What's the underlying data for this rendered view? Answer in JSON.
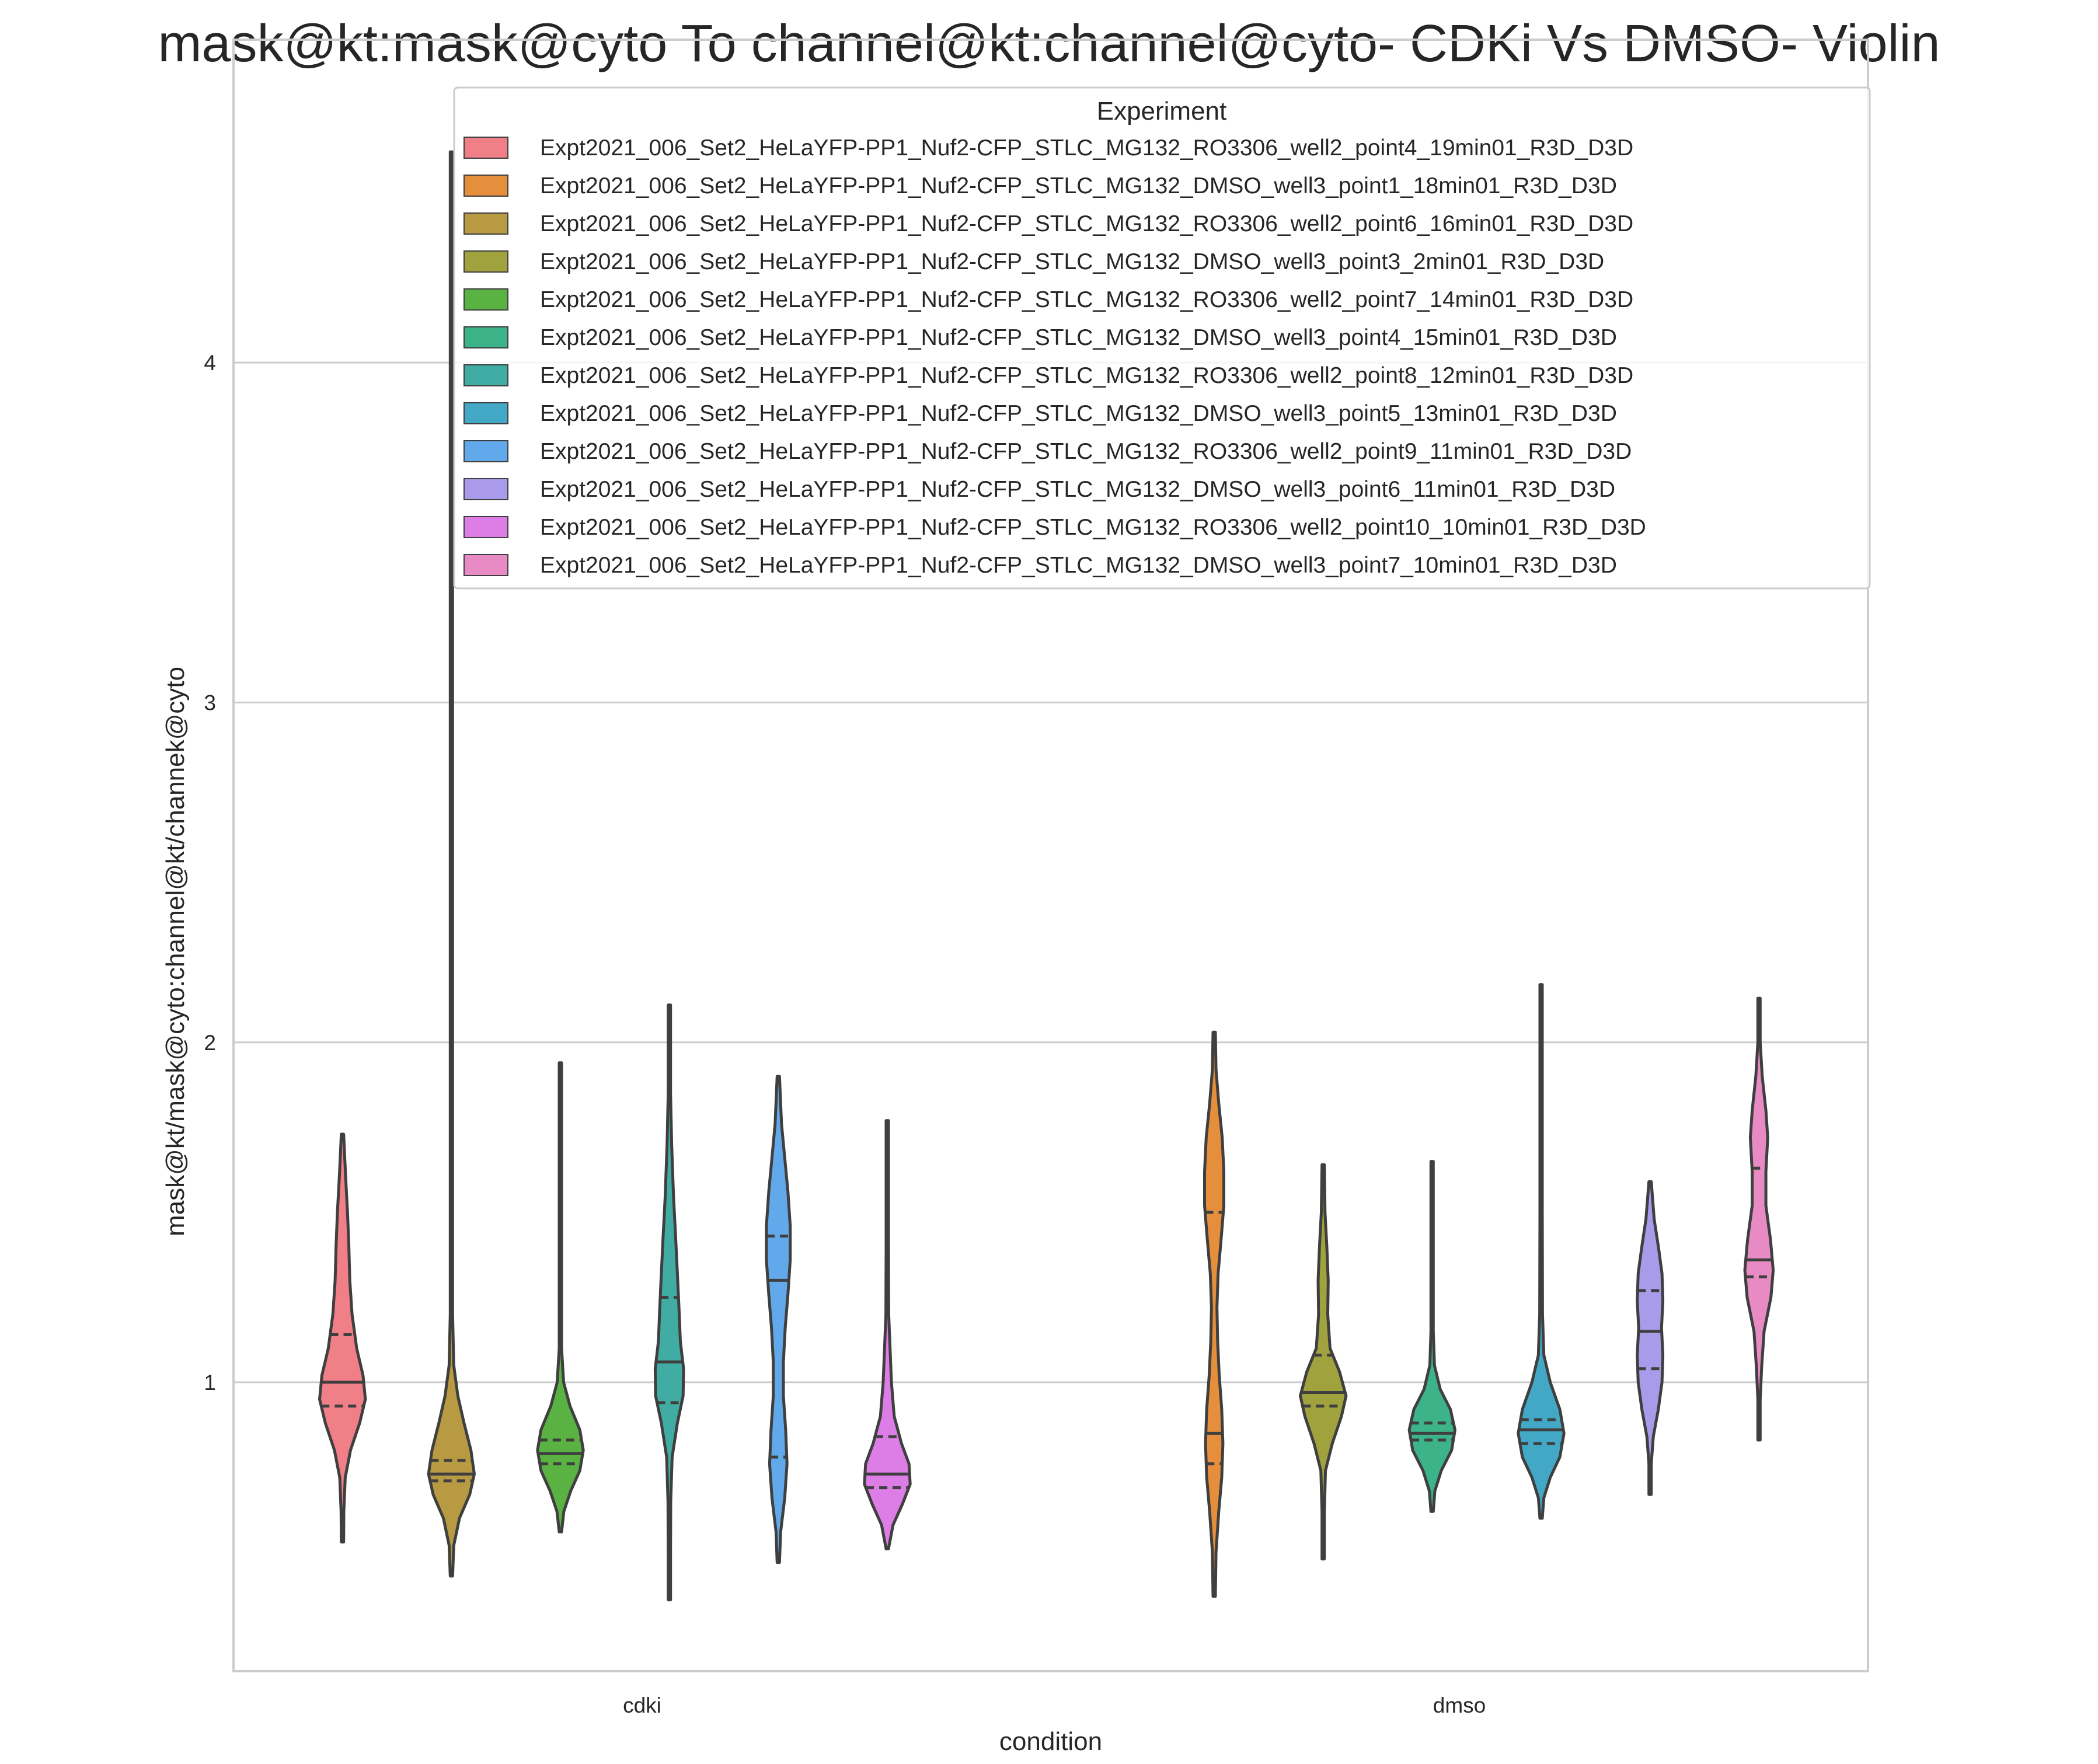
{
  "chart_data": {
    "type": "violin",
    "title": "mask@kt:mask@cyto To channel@kt:channel@cyto- CDKi Vs DMSO- Violin",
    "xlabel": "condition",
    "ylabel": "mask@kt/mask@cyto:channel@kt/channek@cyto",
    "categories": [
      "cdki",
      "dmso"
    ],
    "ylim": [
      0.15,
      4.95
    ],
    "yticks": [
      1,
      2,
      3,
      4
    ],
    "grid": "horizontal",
    "legend": {
      "title": "Experiment",
      "placement": "upper-center"
    },
    "series": [
      {
        "name": "Expt2021_006_Set2_HeLaYFP-PP1_Nuf2-CFP_STLC_MG132_RO3306_well2_point4_19min01_R3D_D3D",
        "color": "#f07f87",
        "condition": "cdki",
        "min": 0.53,
        "max": 1.73,
        "q1": 0.93,
        "median": 1.0,
        "q3": 1.14,
        "profile": [
          [
            0.53,
            0.0
          ],
          [
            0.62,
            0.06
          ],
          [
            0.72,
            0.12
          ],
          [
            0.8,
            0.35
          ],
          [
            0.88,
            0.75
          ],
          [
            0.95,
            1.0
          ],
          [
            1.02,
            0.9
          ],
          [
            1.1,
            0.62
          ],
          [
            1.2,
            0.42
          ],
          [
            1.3,
            0.32
          ],
          [
            1.4,
            0.28
          ],
          [
            1.5,
            0.22
          ],
          [
            1.6,
            0.14
          ],
          [
            1.73,
            0.0
          ]
        ]
      },
      {
        "name": "Expt2021_006_Set2_HeLaYFP-PP1_Nuf2-CFP_STLC_MG132_DMSO_well3_point1_18min01_R3D_D3D",
        "color": "#e58f3c",
        "condition": "dmso",
        "min": 0.37,
        "max": 2.03,
        "q1": 0.76,
        "median": 0.85,
        "q3": 1.5,
        "profile": [
          [
            0.37,
            0.0
          ],
          [
            0.5,
            0.08
          ],
          [
            0.62,
            0.2
          ],
          [
            0.72,
            0.33
          ],
          [
            0.82,
            0.38
          ],
          [
            0.92,
            0.33
          ],
          [
            1.02,
            0.22
          ],
          [
            1.12,
            0.15
          ],
          [
            1.22,
            0.12
          ],
          [
            1.32,
            0.17
          ],
          [
            1.42,
            0.3
          ],
          [
            1.52,
            0.42
          ],
          [
            1.62,
            0.42
          ],
          [
            1.72,
            0.35
          ],
          [
            1.82,
            0.2
          ],
          [
            1.92,
            0.08
          ],
          [
            2.03,
            0.0
          ]
        ]
      },
      {
        "name": "Expt2021_006_Set2_HeLaYFP-PP1_Nuf2-CFP_STLC_MG132_RO3306_well2_point6_16min01_R3D_D3D",
        "color": "#b89a43",
        "condition": "cdki",
        "min": 0.43,
        "max": 4.62,
        "q1": 0.71,
        "median": 0.73,
        "q3": 0.77,
        "profile": [
          [
            0.43,
            0.0
          ],
          [
            0.52,
            0.1
          ],
          [
            0.6,
            0.35
          ],
          [
            0.67,
            0.8
          ],
          [
            0.73,
            1.0
          ],
          [
            0.8,
            0.85
          ],
          [
            0.88,
            0.55
          ],
          [
            0.96,
            0.28
          ],
          [
            1.05,
            0.1
          ],
          [
            1.2,
            0.04
          ],
          [
            1.5,
            0.02
          ],
          [
            2.5,
            0.01
          ],
          [
            4.62,
            0.0
          ]
        ]
      },
      {
        "name": "Expt2021_006_Set2_HeLaYFP-PP1_Nuf2-CFP_STLC_MG132_DMSO_well3_point3_2min01_R3D_D3D",
        "color": "#a0a23e",
        "condition": "dmso",
        "min": 0.48,
        "max": 1.64,
        "q1": 0.93,
        "median": 0.97,
        "q3": 1.08,
        "profile": [
          [
            0.48,
            0.0
          ],
          [
            0.62,
            0.04
          ],
          [
            0.74,
            0.1
          ],
          [
            0.82,
            0.4
          ],
          [
            0.9,
            0.8
          ],
          [
            0.96,
            1.0
          ],
          [
            1.03,
            0.72
          ],
          [
            1.1,
            0.3
          ],
          [
            1.2,
            0.2
          ],
          [
            1.3,
            0.22
          ],
          [
            1.4,
            0.16
          ],
          [
            1.5,
            0.08
          ],
          [
            1.64,
            0.0
          ]
        ]
      },
      {
        "name": "Expt2021_006_Set2_HeLaYFP-PP1_Nuf2-CFP_STLC_MG132_RO3306_well2_point7_14min01_R3D_D3D",
        "color": "#5ab243",
        "condition": "cdki",
        "min": 0.56,
        "max": 1.94,
        "q1": 0.76,
        "median": 0.79,
        "q3": 0.83,
        "profile": [
          [
            0.56,
            0.0
          ],
          [
            0.62,
            0.15
          ],
          [
            0.68,
            0.45
          ],
          [
            0.74,
            0.85
          ],
          [
            0.8,
            1.0
          ],
          [
            0.86,
            0.85
          ],
          [
            0.93,
            0.42
          ],
          [
            1.0,
            0.14
          ],
          [
            1.1,
            0.05
          ],
          [
            1.3,
            0.03
          ],
          [
            1.6,
            0.03
          ],
          [
            1.94,
            0.0
          ]
        ]
      },
      {
        "name": "Expt2021_006_Set2_HeLaYFP-PP1_Nuf2-CFP_STLC_MG132_DMSO_well3_point4_15min01_R3D_D3D",
        "color": "#3db389",
        "condition": "dmso",
        "min": 0.62,
        "max": 1.65,
        "q1": 0.83,
        "median": 0.85,
        "q3": 0.88,
        "profile": [
          [
            0.62,
            0.0
          ],
          [
            0.68,
            0.12
          ],
          [
            0.74,
            0.4
          ],
          [
            0.8,
            0.85
          ],
          [
            0.86,
            1.0
          ],
          [
            0.92,
            0.8
          ],
          [
            0.98,
            0.35
          ],
          [
            1.05,
            0.1
          ],
          [
            1.15,
            0.04
          ],
          [
            1.3,
            0.03
          ],
          [
            1.5,
            0.02
          ],
          [
            1.65,
            0.0
          ]
        ]
      },
      {
        "name": "Expt2021_006_Set2_HeLaYFP-PP1_Nuf2-CFP_STLC_MG132_RO3306_well2_point8_12min01_R3D_D3D",
        "color": "#40aca3",
        "condition": "cdki",
        "min": 0.36,
        "max": 2.11,
        "q1": 0.94,
        "median": 1.06,
        "q3": 1.25,
        "profile": [
          [
            0.36,
            0.0
          ],
          [
            0.5,
            0.03
          ],
          [
            0.65,
            0.06
          ],
          [
            0.78,
            0.12
          ],
          [
            0.88,
            0.35
          ],
          [
            0.96,
            0.6
          ],
          [
            1.04,
            0.62
          ],
          [
            1.12,
            0.48
          ],
          [
            1.22,
            0.42
          ],
          [
            1.32,
            0.35
          ],
          [
            1.42,
            0.28
          ],
          [
            1.55,
            0.18
          ],
          [
            1.7,
            0.1
          ],
          [
            1.85,
            0.05
          ],
          [
            2.11,
            0.0
          ]
        ]
      },
      {
        "name": "Expt2021_006_Set2_HeLaYFP-PP1_Nuf2-CFP_STLC_MG132_DMSO_well3_point5_13min01_R3D_D3D",
        "color": "#43a8c6",
        "condition": "dmso",
        "min": 0.6,
        "max": 2.17,
        "q1": 0.82,
        "median": 0.86,
        "q3": 0.89,
        "profile": [
          [
            0.6,
            0.0
          ],
          [
            0.66,
            0.12
          ],
          [
            0.72,
            0.4
          ],
          [
            0.78,
            0.82
          ],
          [
            0.85,
            1.0
          ],
          [
            0.92,
            0.82
          ],
          [
            1.0,
            0.4
          ],
          [
            1.08,
            0.12
          ],
          [
            1.2,
            0.06
          ],
          [
            1.5,
            0.04
          ],
          [
            1.8,
            0.05
          ],
          [
            2.0,
            0.03
          ],
          [
            2.17,
            0.0
          ]
        ]
      },
      {
        "name": "Expt2021_006_Set2_HeLaYFP-PP1_Nuf2-CFP_STLC_MG132_RO3306_well2_point9_11min01_R3D_D3D",
        "color": "#61a9ea",
        "condition": "cdki",
        "min": 0.47,
        "max": 1.9,
        "q1": 0.78,
        "median": 1.3,
        "q3": 1.43,
        "profile": [
          [
            0.47,
            0.0
          ],
          [
            0.56,
            0.1
          ],
          [
            0.66,
            0.28
          ],
          [
            0.76,
            0.38
          ],
          [
            0.86,
            0.32
          ],
          [
            0.96,
            0.22
          ],
          [
            1.06,
            0.22
          ],
          [
            1.16,
            0.3
          ],
          [
            1.26,
            0.42
          ],
          [
            1.36,
            0.52
          ],
          [
            1.46,
            0.52
          ],
          [
            1.56,
            0.42
          ],
          [
            1.66,
            0.28
          ],
          [
            1.76,
            0.14
          ],
          [
            1.9,
            0.0
          ]
        ]
      },
      {
        "name": "Expt2021_006_Set2_HeLaYFP-PP1_Nuf2-CFP_STLC_MG132_DMSO_well3_point6_11min01_R3D_D3D",
        "color": "#a99bea",
        "condition": "dmso",
        "min": 0.67,
        "max": 1.59,
        "q1": 1.04,
        "median": 1.15,
        "q3": 1.27,
        "profile": [
          [
            0.67,
            0.0
          ],
          [
            0.76,
            0.05
          ],
          [
            0.84,
            0.14
          ],
          [
            0.92,
            0.36
          ],
          [
            1.0,
            0.52
          ],
          [
            1.08,
            0.56
          ],
          [
            1.16,
            0.5
          ],
          [
            1.24,
            0.56
          ],
          [
            1.32,
            0.52
          ],
          [
            1.4,
            0.36
          ],
          [
            1.48,
            0.18
          ],
          [
            1.59,
            0.0
          ]
        ]
      },
      {
        "name": "Expt2021_006_Set2_HeLaYFP-PP1_Nuf2-CFP_STLC_MG132_RO3306_well2_point10_10min01_R3D_D3D",
        "color": "#dd7ee6",
        "condition": "cdki",
        "min": 0.51,
        "max": 1.77,
        "q1": 0.69,
        "median": 0.73,
        "q3": 0.84,
        "profile": [
          [
            0.51,
            0.0
          ],
          [
            0.58,
            0.25
          ],
          [
            0.64,
            0.65
          ],
          [
            0.7,
            1.0
          ],
          [
            0.76,
            0.95
          ],
          [
            0.82,
            0.62
          ],
          [
            0.9,
            0.3
          ],
          [
            1.0,
            0.18
          ],
          [
            1.1,
            0.12
          ],
          [
            1.2,
            0.06
          ],
          [
            1.4,
            0.04
          ],
          [
            1.6,
            0.03
          ],
          [
            1.77,
            0.0
          ]
        ]
      },
      {
        "name": "Expt2021_006_Set2_HeLaYFP-PP1_Nuf2-CFP_STLC_MG132_DMSO_well3_point7_10min01_R3D_D3D",
        "color": "#e88ac3",
        "condition": "dmso",
        "min": 0.83,
        "max": 2.13,
        "q1": 1.31,
        "median": 1.36,
        "q3": 1.63,
        "profile": [
          [
            0.83,
            0.0
          ],
          [
            0.95,
            0.05
          ],
          [
            1.05,
            0.12
          ],
          [
            1.15,
            0.22
          ],
          [
            1.25,
            0.52
          ],
          [
            1.33,
            0.62
          ],
          [
            1.42,
            0.5
          ],
          [
            1.52,
            0.3
          ],
          [
            1.62,
            0.3
          ],
          [
            1.72,
            0.38
          ],
          [
            1.8,
            0.3
          ],
          [
            1.9,
            0.14
          ],
          [
            2.0,
            0.05
          ],
          [
            2.13,
            0.0
          ]
        ]
      }
    ]
  }
}
